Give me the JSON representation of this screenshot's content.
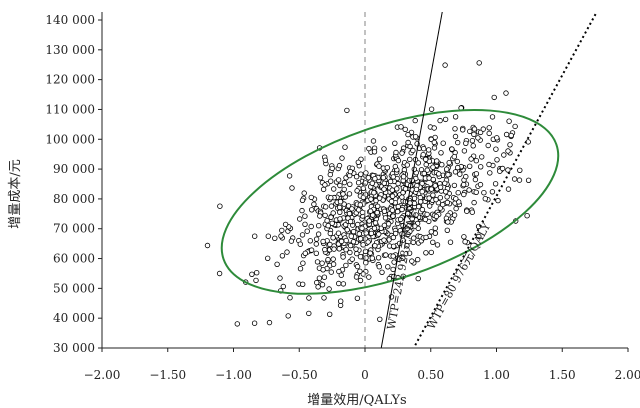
{
  "chart_data": {
    "type": "scatter",
    "xlabel": "增量效用/QALYs",
    "ylabel": "增量成本/元",
    "xlim": [
      -2.0,
      2.0
    ],
    "ylim": [
      30000,
      140000
    ],
    "x_ticks": [
      -2.0,
      -1.5,
      -1.0,
      -0.5,
      0,
      0.5,
      1.0,
      1.5,
      2.0
    ],
    "x_tick_labels": [
      "−2.00",
      "−1.50",
      "−1.00",
      "−0.50",
      "0",
      "0.50",
      "1.00",
      "1.50",
      "2.00"
    ],
    "y_ticks": [
      30000,
      40000,
      50000,
      60000,
      70000,
      80000,
      90000,
      100000,
      110000,
      120000,
      130000,
      140000
    ],
    "y_tick_labels": [
      "30 000",
      "40 000",
      "50 000",
      "60 000",
      "70 000",
      "80 000",
      "90 000",
      "100 000",
      "110 000",
      "120 000",
      "130 000",
      "140 000"
    ],
    "grid": false,
    "legend": "none",
    "vertical_reference_line": {
      "x": 0,
      "style": "dashed",
      "color": "#9a9a9a"
    },
    "threshold_lines": [
      {
        "label": "WTP=242 928元/QALY",
        "slope": 242928,
        "style": "solid",
        "color": "#000000"
      },
      {
        "label": "WTP=80 976元/QALY",
        "slope": 80976,
        "style": "dotted",
        "color": "#000000"
      }
    ],
    "confidence_ellipse": {
      "center": [
        0.19,
        79000
      ],
      "color": "#2e8b3a"
    },
    "scatter": {
      "n_points": 1000,
      "marker": "open-circle",
      "color": "#000000",
      "mean_x": 0.2,
      "mean_y": 78000
    }
  }
}
